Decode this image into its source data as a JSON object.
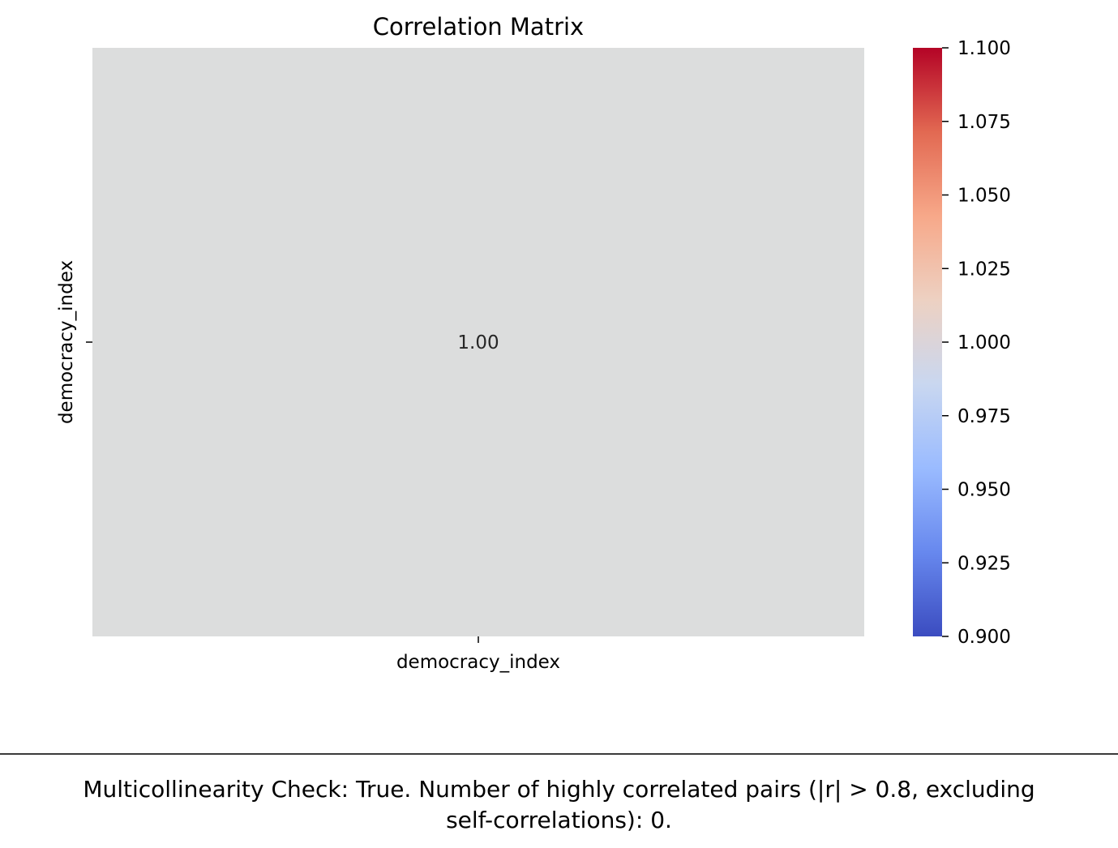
{
  "chart_data": {
    "type": "heatmap",
    "title": "Correlation Matrix",
    "x_labels": [
      "democracy_index"
    ],
    "y_labels": [
      "democracy_index"
    ],
    "values": [
      [
        1.0
      ]
    ],
    "annotations": [
      [
        "1.00"
      ]
    ],
    "colormap": "coolwarm",
    "cell_color": "#dcdddd",
    "colorbar": {
      "min": 0.9,
      "max": 1.1,
      "ticks": [
        "0.900",
        "0.925",
        "0.950",
        "0.975",
        "1.000",
        "1.025",
        "1.050",
        "1.075",
        "1.100"
      ],
      "tick_values": [
        0.9,
        0.925,
        0.95,
        0.975,
        1.0,
        1.025,
        1.05,
        1.075,
        1.1
      ],
      "stops": [
        "#3b4cc0",
        "#6788ee",
        "#9abbff",
        "#c9d7f0",
        "#edd1c2",
        "#f7a889",
        "#e26952",
        "#b40426"
      ]
    }
  },
  "caption": {
    "line1": "Multicollinearity Check: True. Number of highly correlated pairs (|r| > 0.8, excluding",
    "line2": "self-correlations): 0."
  }
}
